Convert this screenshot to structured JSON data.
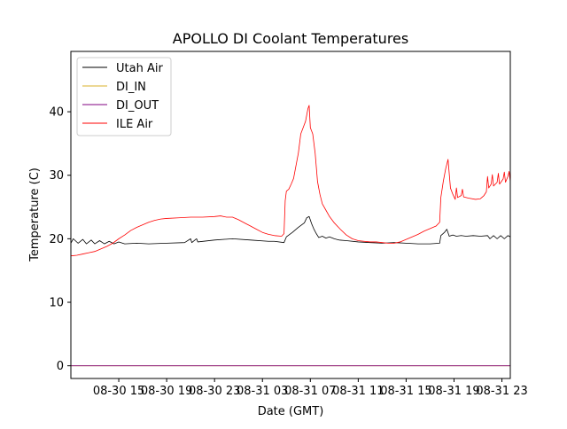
{
  "chart_data": {
    "type": "line",
    "title": "APOLLO DI Coolant Temperatures",
    "xlabel": "Date (GMT)",
    "ylabel": "Temperature (C)",
    "x_unit": "hours since 08-30 00:00 GMT",
    "xlim": [
      11,
      47.7
    ],
    "ylim": [
      -2,
      49.5
    ],
    "grid": false,
    "legend_position": "top-left",
    "x_ticks": [
      {
        "value": 15,
        "label": "08-30 15"
      },
      {
        "value": 19,
        "label": "08-30 19"
      },
      {
        "value": 23,
        "label": "08-30 23"
      },
      {
        "value": 27,
        "label": "08-31 03"
      },
      {
        "value": 31,
        "label": "08-31 07"
      },
      {
        "value": 35,
        "label": "08-31 11"
      },
      {
        "value": 39,
        "label": "08-31 15"
      },
      {
        "value": 43,
        "label": "08-31 19"
      },
      {
        "value": 47,
        "label": "08-31 23"
      }
    ],
    "y_ticks": [
      {
        "value": 0,
        "label": "0"
      },
      {
        "value": 10,
        "label": "10"
      },
      {
        "value": 20,
        "label": "20"
      },
      {
        "value": 30,
        "label": "30"
      },
      {
        "value": 40,
        "label": "40"
      }
    ],
    "series": [
      {
        "name": "Utah Air",
        "color": "#000000",
        "points": [
          [
            11,
            19.3
          ],
          [
            11.2,
            20.0
          ],
          [
            11.6,
            19.3
          ],
          [
            12.0,
            19.9
          ],
          [
            12.3,
            19.2
          ],
          [
            12.7,
            19.8
          ],
          [
            13.0,
            19.2
          ],
          [
            13.4,
            19.7
          ],
          [
            13.8,
            19.2
          ],
          [
            14.2,
            19.6
          ],
          [
            14.6,
            19.2
          ],
          [
            15.0,
            19.5
          ],
          [
            15.5,
            19.2
          ],
          [
            16.5,
            19.3
          ],
          [
            17.5,
            19.2
          ],
          [
            19.0,
            19.3
          ],
          [
            20.5,
            19.4
          ],
          [
            21.0,
            20.0
          ],
          [
            21.1,
            19.4
          ],
          [
            21.5,
            20.0
          ],
          [
            21.6,
            19.5
          ],
          [
            23.0,
            19.8
          ],
          [
            24.5,
            20.0
          ],
          [
            26.0,
            19.8
          ],
          [
            27.5,
            19.6
          ],
          [
            28.0,
            19.6
          ],
          [
            28.8,
            19.4
          ],
          [
            29.0,
            20.3
          ],
          [
            29.5,
            21.0
          ],
          [
            30.0,
            21.8
          ],
          [
            30.5,
            22.5
          ],
          [
            30.7,
            23.3
          ],
          [
            30.9,
            23.5
          ],
          [
            31.1,
            22.4
          ],
          [
            31.3,
            21.5
          ],
          [
            31.5,
            20.8
          ],
          [
            31.7,
            20.2
          ],
          [
            32.0,
            20.4
          ],
          [
            32.3,
            20.1
          ],
          [
            32.6,
            20.3
          ],
          [
            33.0,
            20.0
          ],
          [
            33.4,
            19.8
          ],
          [
            34.0,
            19.7
          ],
          [
            35.0,
            19.5
          ],
          [
            36.0,
            19.4
          ],
          [
            37.0,
            19.3
          ],
          [
            38.0,
            19.4
          ],
          [
            39.0,
            19.3
          ],
          [
            40.0,
            19.2
          ],
          [
            41.0,
            19.2
          ],
          [
            41.8,
            19.3
          ],
          [
            41.9,
            20.5
          ],
          [
            42.2,
            21.0
          ],
          [
            42.4,
            21.5
          ],
          [
            42.6,
            20.4
          ],
          [
            42.9,
            20.6
          ],
          [
            43.2,
            20.4
          ],
          [
            43.6,
            20.5
          ],
          [
            44.0,
            20.4
          ],
          [
            44.6,
            20.5
          ],
          [
            45.2,
            20.4
          ],
          [
            45.8,
            20.5
          ],
          [
            46.0,
            20.0
          ],
          [
            46.3,
            20.5
          ],
          [
            46.6,
            20.0
          ],
          [
            46.9,
            20.5
          ],
          [
            47.2,
            20.0
          ],
          [
            47.5,
            20.5
          ],
          [
            47.7,
            20.3
          ]
        ]
      },
      {
        "name": "DI_IN",
        "color": "#d8b02a",
        "points": [
          [
            11,
            0
          ],
          [
            47.7,
            0
          ]
        ]
      },
      {
        "name": "DI_OUT",
        "color": "#800080",
        "points": [
          [
            11,
            0
          ],
          [
            47.7,
            0
          ]
        ]
      },
      {
        "name": "ILE Air",
        "color": "#ff0000",
        "points": [
          [
            11,
            17.3
          ],
          [
            11.5,
            17.4
          ],
          [
            12.0,
            17.6
          ],
          [
            12.5,
            17.8
          ],
          [
            13.0,
            18.0
          ],
          [
            13.5,
            18.4
          ],
          [
            14.0,
            18.8
          ],
          [
            14.5,
            19.3
          ],
          [
            15.0,
            20.0
          ],
          [
            15.5,
            20.6
          ],
          [
            16.0,
            21.3
          ],
          [
            16.5,
            21.8
          ],
          [
            17.0,
            22.2
          ],
          [
            17.5,
            22.6
          ],
          [
            18.0,
            22.9
          ],
          [
            18.5,
            23.1
          ],
          [
            19.0,
            23.2
          ],
          [
            20.0,
            23.3
          ],
          [
            21.0,
            23.4
          ],
          [
            22.0,
            23.4
          ],
          [
            23.0,
            23.5
          ],
          [
            23.5,
            23.6
          ],
          [
            24.0,
            23.4
          ],
          [
            24.5,
            23.4
          ],
          [
            25.0,
            23.0
          ],
          [
            25.5,
            22.5
          ],
          [
            26.0,
            22.0
          ],
          [
            26.5,
            21.5
          ],
          [
            27.0,
            21.0
          ],
          [
            27.5,
            20.7
          ],
          [
            28.0,
            20.5
          ],
          [
            28.6,
            20.4
          ],
          [
            28.8,
            20.8
          ],
          [
            28.9,
            26.0
          ],
          [
            29.0,
            27.5
          ],
          [
            29.2,
            27.8
          ],
          [
            29.4,
            28.6
          ],
          [
            29.6,
            29.5
          ],
          [
            29.8,
            31.5
          ],
          [
            30.0,
            33.5
          ],
          [
            30.2,
            36.5
          ],
          [
            30.4,
            37.5
          ],
          [
            30.6,
            38.5
          ],
          [
            30.8,
            40.5
          ],
          [
            30.9,
            41.0
          ],
          [
            31.0,
            37.5
          ],
          [
            31.2,
            36.5
          ],
          [
            31.4,
            33.5
          ],
          [
            31.6,
            29.0
          ],
          [
            31.8,
            27.0
          ],
          [
            32.0,
            25.5
          ],
          [
            32.3,
            24.5
          ],
          [
            32.6,
            23.5
          ],
          [
            33.0,
            22.5
          ],
          [
            33.5,
            21.5
          ],
          [
            34.0,
            20.6
          ],
          [
            34.5,
            20.0
          ],
          [
            35.0,
            19.7
          ],
          [
            35.5,
            19.6
          ],
          [
            36.0,
            19.5
          ],
          [
            36.5,
            19.5
          ],
          [
            37.0,
            19.4
          ],
          [
            37.5,
            19.3
          ],
          [
            38.0,
            19.3
          ],
          [
            38.5,
            19.5
          ],
          [
            39.0,
            19.9
          ],
          [
            39.5,
            20.3
          ],
          [
            40.0,
            20.7
          ],
          [
            40.5,
            21.2
          ],
          [
            41.0,
            21.6
          ],
          [
            41.5,
            22.0
          ],
          [
            41.8,
            22.6
          ],
          [
            41.9,
            26.5
          ],
          [
            42.1,
            29.0
          ],
          [
            42.3,
            31.0
          ],
          [
            42.5,
            32.5
          ],
          [
            42.7,
            28.0
          ],
          [
            42.9,
            27.0
          ],
          [
            43.1,
            26.2
          ],
          [
            43.2,
            28.0
          ],
          [
            43.3,
            26.5
          ],
          [
            43.6,
            26.8
          ],
          [
            43.7,
            27.8
          ],
          [
            43.8,
            26.6
          ],
          [
            44.2,
            26.4
          ],
          [
            44.8,
            26.2
          ],
          [
            45.2,
            26.3
          ],
          [
            45.5,
            26.8
          ],
          [
            45.7,
            27.4
          ],
          [
            45.8,
            29.8
          ],
          [
            45.9,
            28.0
          ],
          [
            46.1,
            28.6
          ],
          [
            46.2,
            30.1
          ],
          [
            46.3,
            28.3
          ],
          [
            46.6,
            28.9
          ],
          [
            46.7,
            30.3
          ],
          [
            46.8,
            28.6
          ],
          [
            47.1,
            29.4
          ],
          [
            47.2,
            30.5
          ],
          [
            47.3,
            28.9
          ],
          [
            47.5,
            29.8
          ],
          [
            47.6,
            30.6
          ],
          [
            47.7,
            29.0
          ]
        ]
      }
    ]
  }
}
